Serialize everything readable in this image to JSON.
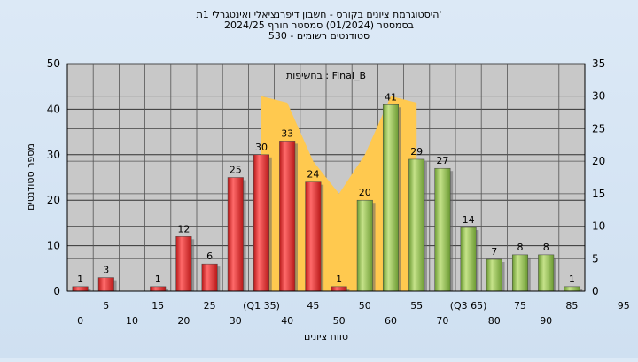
{
  "chart_data": {
    "type": "bar",
    "title_lines": [
      "היסטוגרמת ציונים בקורס - חשבון דיפרנציאלי ואינטגרלי 1ת'",
      "בסמסטר  (01/2024)  סמסטר חורף 2024/25",
      "סטודנטים רשומים - 530"
    ],
    "xlabel": "טווח ציונים",
    "ylabel": "מספר סטודנטים",
    "annotation": "בחשיפות : Final_B",
    "ylim": [
      0,
      50
    ],
    "y2lim": [
      0,
      35
    ],
    "yticks": [
      0,
      10,
      20,
      30,
      40,
      50
    ],
    "y2ticks": [
      0,
      5,
      10,
      15,
      20,
      25,
      30,
      35
    ],
    "x_labels_row1": [
      "5",
      "15",
      "25",
      "(Q1 35)",
      "45",
      "50",
      "55",
      "(Q3 65)",
      "75",
      "85",
      "95"
    ],
    "x_labels_row2": [
      "0",
      "10",
      "20",
      "30",
      "40",
      "50",
      "60",
      "70",
      "80",
      "90"
    ],
    "categories": [
      "0",
      "5",
      "10",
      "15",
      "20",
      "25",
      "30",
      "35",
      "40",
      "45",
      "50",
      "55",
      "60",
      "65",
      "70",
      "75",
      "80",
      "85",
      "90",
      "95"
    ],
    "values": [
      1,
      3,
      0,
      1,
      12,
      6,
      25,
      30,
      33,
      24,
      1,
      20,
      41,
      29,
      27,
      14,
      7,
      8,
      8,
      1
    ],
    "data_labels": [
      "1",
      "3",
      "",
      "1",
      "12",
      "6",
      "25",
      "30",
      "33",
      "24",
      "1",
      "20",
      "41",
      "29",
      "27",
      "14",
      "7",
      "8",
      "8",
      "1"
    ],
    "series_colors": {
      "fail": "#dd2a2a",
      "pass": "#8ab84a",
      "area": "#ffc94f"
    },
    "pass_threshold_index": 11,
    "area_series": {
      "x": [
        35,
        40,
        45,
        50,
        55,
        60,
        65
      ],
      "values": [
        30,
        29,
        20,
        15,
        21,
        30,
        29
      ]
    },
    "grid": true
  }
}
